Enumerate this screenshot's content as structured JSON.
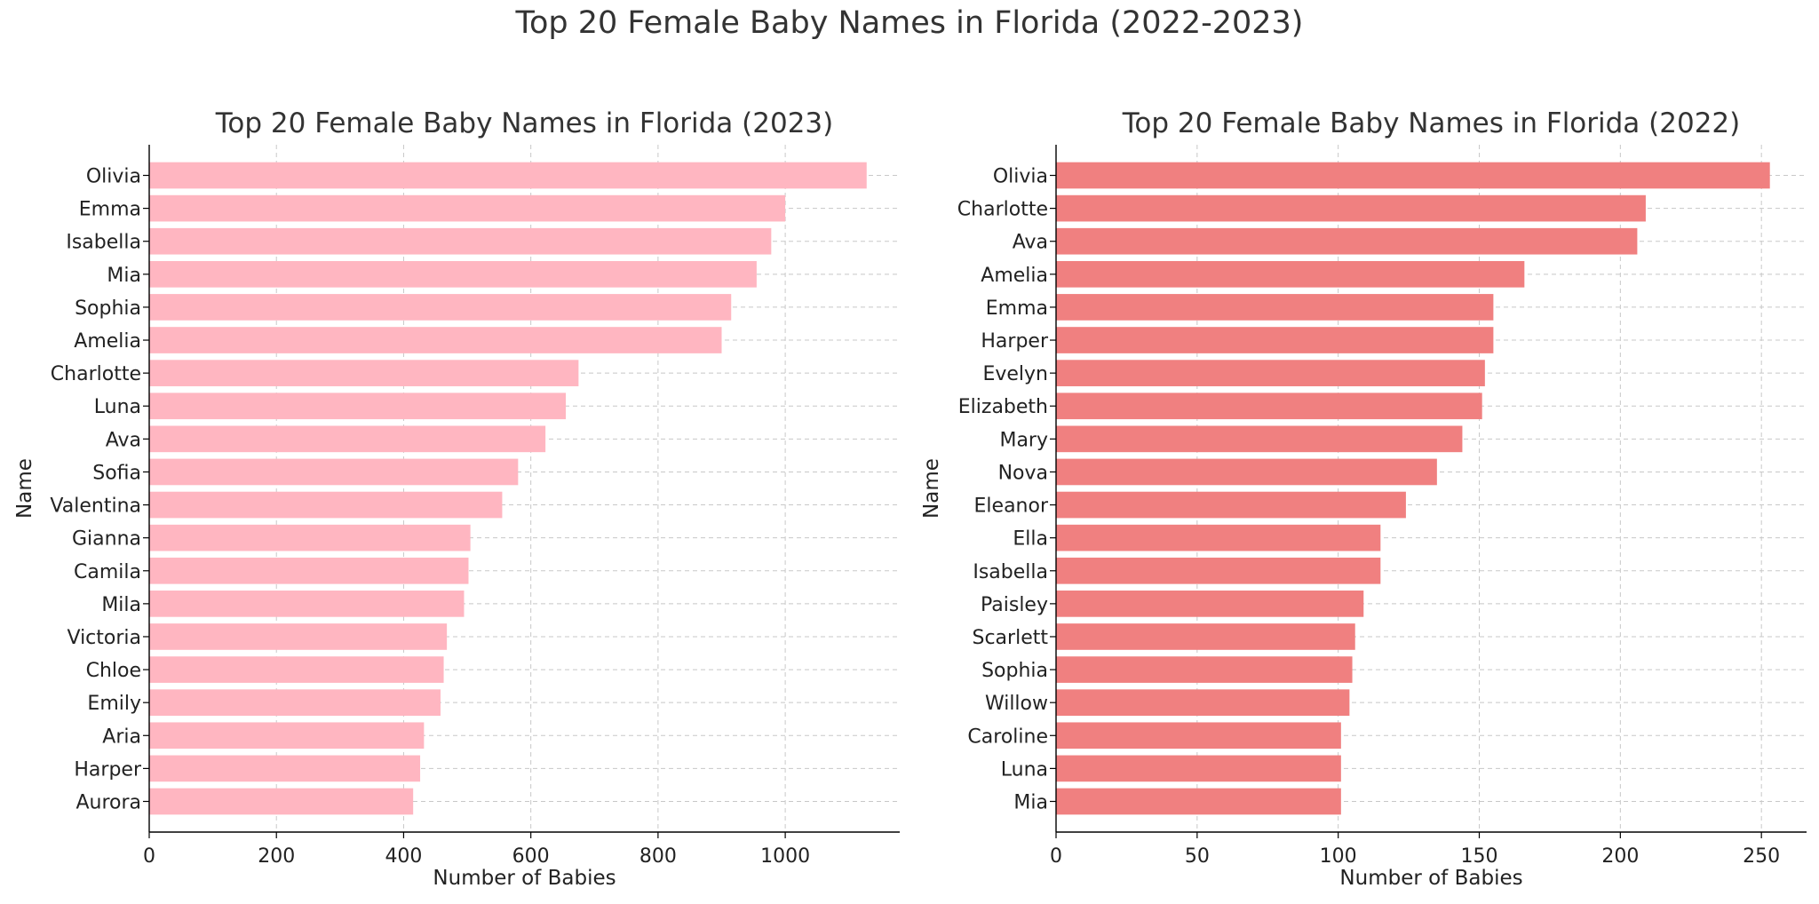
{
  "figure": {
    "title": "Top 20 Female Baby Names in Florida (2022-2023)"
  },
  "chart_data": [
    {
      "type": "bar",
      "orientation": "horizontal",
      "title": "Top 20 Female Baby Names in Florida (2023)",
      "xlabel": "Number of Babies",
      "ylabel": "Name",
      "categories": [
        "Olivia",
        "Emma",
        "Isabella",
        "Mia",
        "Sophia",
        "Amelia",
        "Charlotte",
        "Luna",
        "Ava",
        "Sofia",
        "Valentina",
        "Gianna",
        "Camila",
        "Mila",
        "Victoria",
        "Chloe",
        "Emily",
        "Aria",
        "Harper",
        "Aurora"
      ],
      "values": [
        1128,
        1000,
        978,
        955,
        915,
        900,
        675,
        655,
        623,
        580,
        555,
        505,
        502,
        495,
        468,
        463,
        458,
        432,
        426,
        415
      ],
      "xlim": [
        0,
        1180
      ],
      "xticks": [
        0,
        200,
        400,
        600,
        800,
        1000
      ],
      "grid": true,
      "color": "#ffb6c1"
    },
    {
      "type": "bar",
      "orientation": "horizontal",
      "title": "Top 20 Female Baby Names in Florida (2022)",
      "xlabel": "Number of Babies",
      "ylabel": "Name",
      "categories": [
        "Olivia",
        "Charlotte",
        "Ava",
        "Amelia",
        "Emma",
        "Harper",
        "Evelyn",
        "Elizabeth",
        "Mary",
        "Nova",
        "Eleanor",
        "Ella",
        "Isabella",
        "Paisley",
        "Scarlett",
        "Sophia",
        "Willow",
        "Caroline",
        "Luna",
        "Mia"
      ],
      "values": [
        253,
        209,
        206,
        166,
        155,
        155,
        152,
        151,
        144,
        135,
        124,
        115,
        115,
        109,
        106,
        105,
        104,
        101,
        101,
        101
      ],
      "xlim": [
        0,
        266
      ],
      "xticks": [
        0,
        50,
        100,
        150,
        200,
        250
      ],
      "grid": true,
      "color": "#f08080"
    }
  ]
}
